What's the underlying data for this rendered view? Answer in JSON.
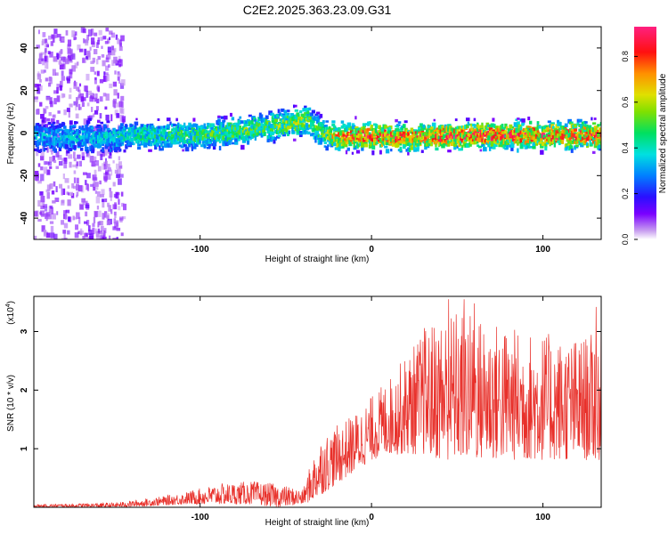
{
  "title": "C2E2.2025.363.23.09.G31",
  "chart_data": [
    {
      "type": "heatmap",
      "title": "C2E2.2025.363.23.09.G31",
      "xlabel": "Height of straight line (km)",
      "ylabel": "Frequency (Hz)",
      "xlim": [
        -197,
        134
      ],
      "ylim": [
        -50,
        50
      ],
      "x_ticks": [
        -100,
        0,
        100
      ],
      "y_ticks": [
        -40,
        -20,
        0,
        20,
        40
      ],
      "signal_ridge": {
        "x": [
          -197,
          -150,
          -140,
          -100,
          -80,
          -60,
          -45,
          -38,
          -30,
          -20,
          0,
          20,
          50,
          80,
          100,
          134
        ],
        "center_freq_hz": [
          -2,
          -2,
          -1,
          -1,
          1,
          3,
          5,
          6,
          0,
          -2,
          -1,
          -2,
          -1,
          -1,
          -1,
          -1
        ],
        "peak_amplitude": [
          0.35,
          0.4,
          0.45,
          0.5,
          0.55,
          0.55,
          0.6,
          0.6,
          0.5,
          0.75,
          0.85,
          0.8,
          0.85,
          0.8,
          0.85,
          0.8
        ]
      },
      "noise_region_x": [
        -197,
        -145
      ],
      "colorbar": {
        "label": "Normalized spectral amplitude",
        "range": [
          0,
          0.93
        ],
        "ticks": [
          "0.0",
          "0.2",
          "0.4",
          "0.6",
          "0.8"
        ]
      }
    },
    {
      "type": "line",
      "xlabel": "Height of straight line (km)",
      "ylabel": "SNR (10 * v/v)",
      "y_multiplier": "(x10",
      "y_multiplier_exp": "4",
      "y_multiplier_close": ")",
      "xlim": [
        -197,
        134
      ],
      "ylim": [
        0,
        3.6
      ],
      "x_ticks": [
        -100,
        0,
        100
      ],
      "y_ticks": [
        1,
        2,
        3
      ],
      "series": [
        {
          "name": "SNR",
          "color": "#e8302a",
          "envelope_x": [
            -197,
            -150,
            -130,
            -110,
            -90,
            -70,
            -55,
            -40,
            -35,
            -30,
            -20,
            -10,
            0,
            10,
            20,
            30,
            40,
            50,
            60,
            70,
            80,
            90,
            100,
            110,
            120,
            134
          ],
          "envelope_lo": [
            0.0,
            0.0,
            0.02,
            0.05,
            0.05,
            0.05,
            0.0,
            0.05,
            0.1,
            0.2,
            0.4,
            0.6,
            0.8,
            0.9,
            0.9,
            0.9,
            0.8,
            0.8,
            0.8,
            0.8,
            0.8,
            0.8,
            0.8,
            0.8,
            0.8,
            0.8
          ],
          "envelope_hi": [
            0.05,
            0.08,
            0.15,
            0.25,
            0.4,
            0.45,
            0.4,
            0.3,
            0.8,
            1.2,
            1.4,
            1.6,
            1.9,
            2.2,
            2.6,
            3.0,
            3.3,
            3.4,
            3.3,
            3.2,
            3.1,
            3.0,
            3.0,
            2.9,
            2.9,
            3.0
          ],
          "spikes": [
            {
              "x": 31,
              "y": 3.06
            },
            {
              "x": 45,
              "y": 3.55
            },
            {
              "x": 54,
              "y": 3.55
            },
            {
              "x": 60,
              "y": 3.48
            },
            {
              "x": 131,
              "y": 3.42
            }
          ]
        }
      ]
    }
  ]
}
